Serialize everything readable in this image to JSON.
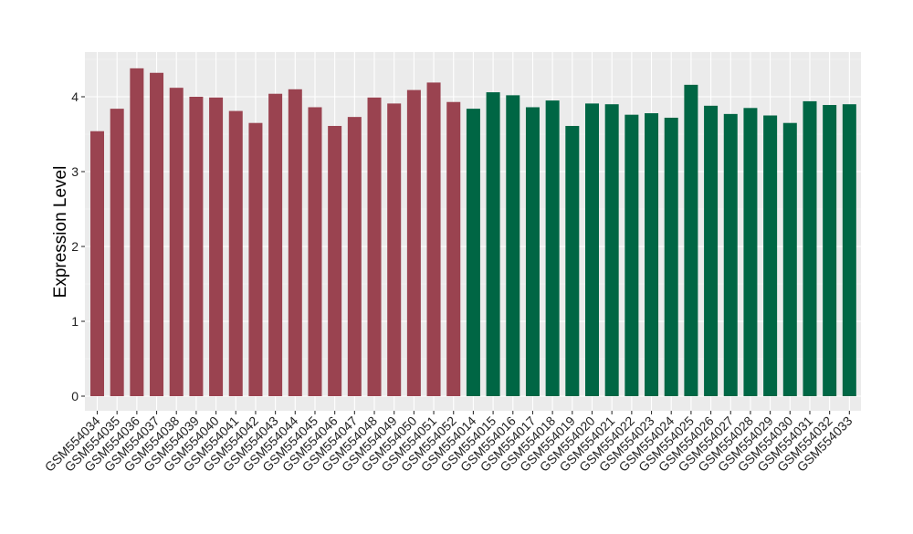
{
  "chart_data": {
    "type": "bar",
    "title": "",
    "xlabel": "",
    "ylabel": "Expression Level",
    "ylim": [
      0,
      4.5
    ],
    "yticks": [
      0,
      1,
      2,
      3,
      4
    ],
    "grid": true,
    "legend": "none",
    "group_colors": [
      "#9a4350",
      "#006644"
    ],
    "panel_background": "#ebebeb",
    "categories": [
      "GSM554034",
      "GSM554035",
      "GSM554036",
      "GSM554037",
      "GSM554038",
      "GSM554039",
      "GSM554040",
      "GSM554041",
      "GSM554042",
      "GSM554043",
      "GSM554044",
      "GSM554045",
      "GSM554046",
      "GSM554047",
      "GSM554048",
      "GSM554049",
      "GSM554050",
      "GSM554051",
      "GSM554052",
      "GSM554014",
      "GSM554015",
      "GSM554016",
      "GSM554017",
      "GSM554018",
      "GSM554019",
      "GSM554020",
      "GSM554021",
      "GSM554022",
      "GSM554023",
      "GSM554024",
      "GSM554025",
      "GSM554026",
      "GSM554027",
      "GSM554028",
      "GSM554029",
      "GSM554030",
      "GSM554031",
      "GSM554032",
      "GSM554033"
    ],
    "values": [
      3.54,
      3.84,
      4.38,
      4.32,
      4.12,
      4.0,
      3.99,
      3.81,
      3.65,
      4.04,
      4.1,
      3.86,
      3.61,
      3.73,
      3.99,
      3.91,
      4.09,
      4.19,
      3.93,
      3.84,
      4.06,
      4.02,
      3.86,
      3.95,
      3.61,
      3.91,
      3.9,
      3.76,
      3.78,
      3.72,
      4.16,
      3.88,
      3.77,
      3.85,
      3.75,
      3.65,
      3.94,
      3.89,
      3.9
    ],
    "groups": [
      0,
      0,
      0,
      0,
      0,
      0,
      0,
      0,
      0,
      0,
      0,
      0,
      0,
      0,
      0,
      0,
      0,
      0,
      0,
      1,
      1,
      1,
      1,
      1,
      1,
      1,
      1,
      1,
      1,
      1,
      1,
      1,
      1,
      1,
      1,
      1,
      1,
      1,
      1
    ]
  }
}
